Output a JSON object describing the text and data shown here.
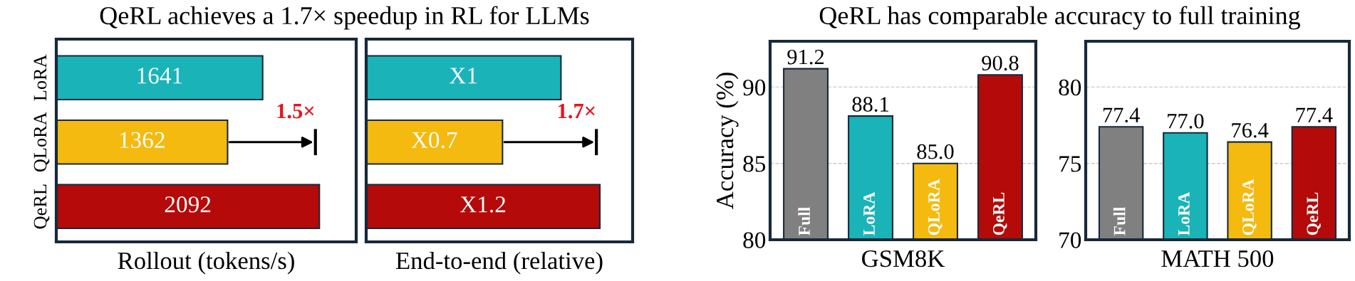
{
  "chart_data": [
    {
      "type": "bar",
      "orientation": "horizontal",
      "title": "QeRL achieves a 1.7× speedup in RL for LLMs",
      "xlabel": "Rollout (tokens/s)",
      "categories": [
        "LoRA",
        "QLoRA",
        "QeRL"
      ],
      "values": [
        1641,
        1362,
        2092
      ],
      "colors": [
        "#1ab3b8",
        "#f5ba0f",
        "#b50a0a"
      ],
      "data_labels": true,
      "tick_labels": "y",
      "annotations": [
        "1.5×"
      ]
    },
    {
      "type": "bar",
      "orientation": "horizontal",
      "xlabel": "End-to-end (relative)",
      "categories": [
        null,
        null,
        null
      ],
      "values": [
        1,
        0.7,
        1.2
      ],
      "value_labels": [
        "X1",
        "X0.7",
        "X1.2"
      ],
      "colors": [
        "#1ab3b8",
        "#f5ba0f",
        "#b50a0a"
      ],
      "tick_labels": false,
      "annotations": [
        "1.7×"
      ]
    },
    {
      "type": "bar",
      "title": "QeRL has comparable accuracy to full training",
      "xlabel": "GSM8K",
      "ylabel": "Accuracy (%)",
      "categories": [
        "Full",
        "LoRA",
        "QLoRA",
        "QeRL"
      ],
      "values": [
        91.2,
        88.1,
        85.0,
        90.8
      ],
      "value_labels": [
        "91.2",
        "88.1",
        "85.0",
        "90.8"
      ],
      "colors": [
        "#808080",
        "#1ab3b8",
        "#f5ba0f",
        "#b50a0a"
      ],
      "ylim": [
        80,
        93
      ],
      "yticks": [
        80,
        85,
        90
      ],
      "grid": "y"
    },
    {
      "type": "bar",
      "xlabel": "MATH 500",
      "categories": [
        "Full",
        "LoRA",
        "QLoRA",
        "QeRL"
      ],
      "values": [
        77.4,
        77.0,
        76.4,
        77.4
      ],
      "value_labels": [
        "77.4",
        "77.0",
        "76.4",
        "77.4"
      ],
      "colors": [
        "#808080",
        "#1ab3b8",
        "#f5ba0f",
        "#b50a0a"
      ],
      "ylim": [
        70,
        83
      ],
      "yticks": [
        70,
        75,
        80
      ],
      "grid": "y"
    }
  ]
}
